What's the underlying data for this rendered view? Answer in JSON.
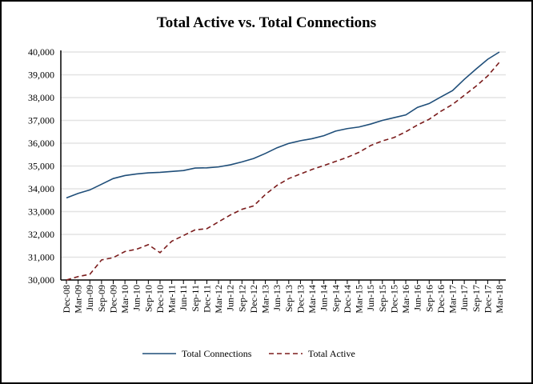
{
  "chart_data": {
    "type": "line",
    "title": "Total Active vs. Total Connections",
    "xlabel": "",
    "ylabel": "",
    "ylim": [
      30000,
      40000
    ],
    "yticks": [
      "30,000",
      "31,000",
      "32,000",
      "33,000",
      "34,000",
      "35,000",
      "36,000",
      "37,000",
      "38,000",
      "39,000",
      "40,000"
    ],
    "ytick_values": [
      30000,
      31000,
      32000,
      33000,
      34000,
      35000,
      36000,
      37000,
      38000,
      39000,
      40000
    ],
    "grid": "horizontal",
    "legend_position": "bottom",
    "categories": [
      "Dec-08",
      "Mar-09",
      "Jun-09",
      "Sep-09",
      "Dec-09",
      "Mar-10",
      "Jun-10",
      "Sep-10",
      "Dec-10",
      "Mar-11",
      "Jun-11",
      "Sep-11",
      "Dec-11",
      "Mar-12",
      "Jun-12",
      "Sep-12",
      "Dec-12",
      "Mar-13",
      "Jun-13",
      "Sep-13",
      "Dec-13",
      "Mar-14",
      "Jun-14",
      "Sep-14",
      "Dec-14",
      "Mar-15",
      "Jun-15",
      "Sep-15",
      "Dec-15",
      "Mar-16",
      "Jun-16",
      "Sep-16",
      "Dec-16",
      "Mar-17",
      "Jun-17",
      "Sep-17",
      "Dec-17",
      "Mar-18"
    ],
    "series": [
      {
        "name": "Total Connections",
        "color": "#1f4e79",
        "style": "solid",
        "values": [
          33600,
          33800,
          33950,
          34200,
          34450,
          34580,
          34650,
          34700,
          34720,
          34760,
          34800,
          34910,
          34920,
          34960,
          35050,
          35180,
          35330,
          35550,
          35800,
          35990,
          36110,
          36200,
          36330,
          36530,
          36640,
          36710,
          36840,
          37000,
          37120,
          37240,
          37570,
          37740,
          38030,
          38310,
          38800,
          39250,
          39680,
          40000
        ]
      },
      {
        "name": "Total Active",
        "color": "#7b1c1c",
        "style": "dashed",
        "values": [
          29950,
          30150,
          30250,
          30880,
          30980,
          31250,
          31350,
          31550,
          31200,
          31700,
          31950,
          32200,
          32250,
          32550,
          32850,
          33100,
          33250,
          33750,
          34150,
          34450,
          34650,
          34850,
          35020,
          35200,
          35380,
          35600,
          35900,
          36100,
          36250,
          36500,
          36800,
          37050,
          37400,
          37700,
          38100,
          38500,
          38950,
          39550
        ]
      }
    ]
  }
}
